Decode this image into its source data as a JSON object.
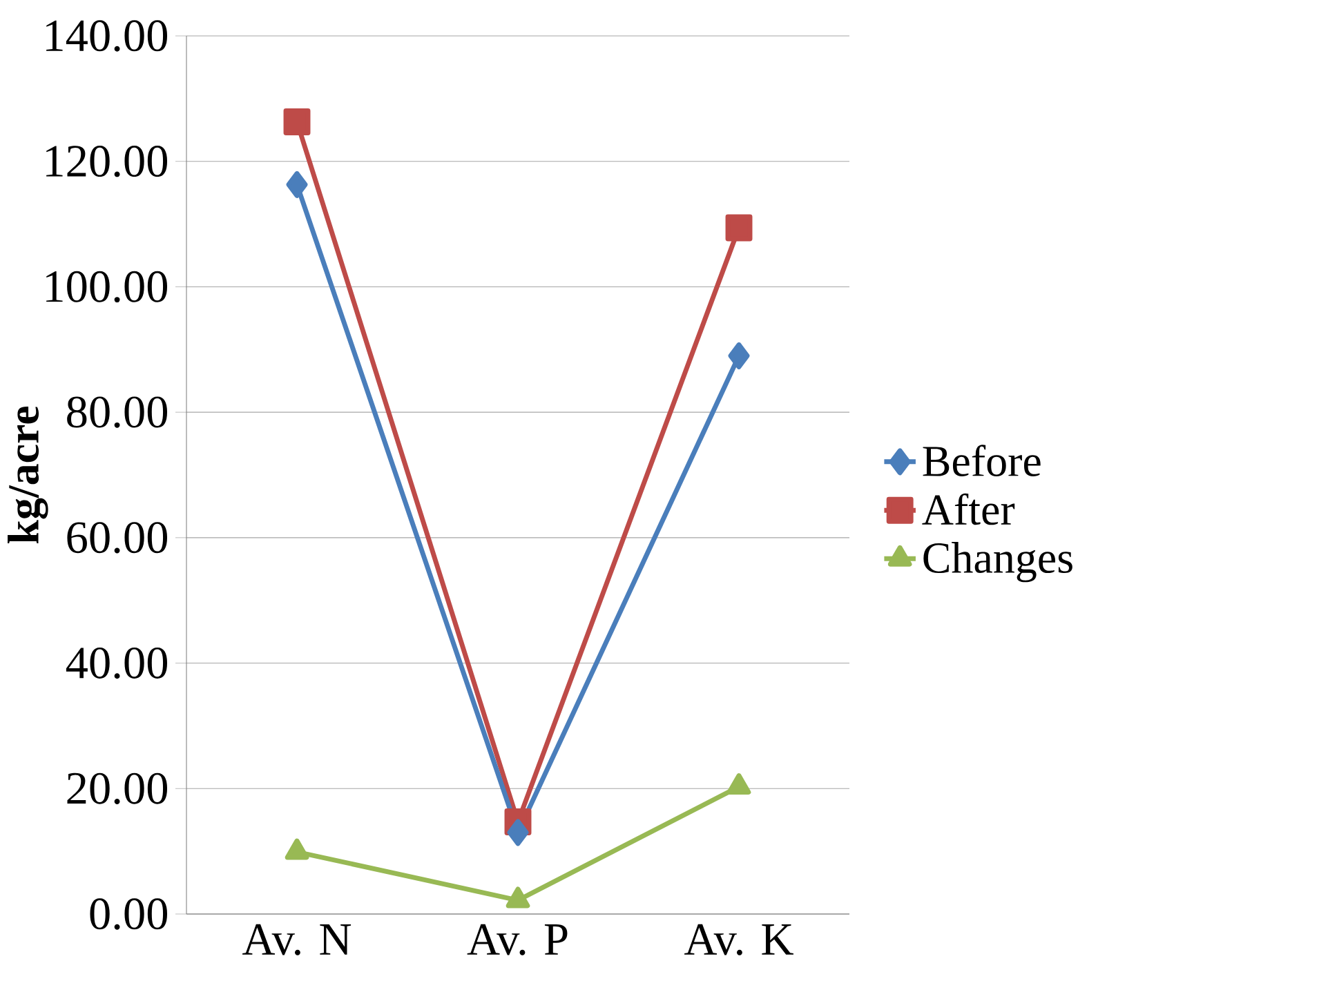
{
  "chart_data": {
    "type": "line",
    "ylabel": "kg/acre",
    "categories": [
      "Av. N",
      "Av. P",
      "Av. K"
    ],
    "series": [
      {
        "name": "Before",
        "color": "#4a7ebb",
        "marker": "diamond",
        "values": [
          116.3,
          13,
          89
        ]
      },
      {
        "name": "After",
        "color": "#be4b48",
        "marker": "square",
        "values": [
          126.3,
          14.7,
          109.4
        ]
      },
      {
        "name": "Changes",
        "color": "#98b954",
        "marker": "triangle",
        "values": [
          9.9,
          2.2,
          20.3
        ]
      }
    ],
    "ylim": [
      0,
      140
    ],
    "yticks": [
      {
        "value": 0,
        "label": "0.00"
      },
      {
        "value": 20,
        "label": "20.00"
      },
      {
        "value": 40,
        "label": "40.00"
      },
      {
        "value": 60,
        "label": "60.00"
      },
      {
        "value": 80,
        "label": "80.00"
      },
      {
        "value": 100,
        "label": "100.00"
      },
      {
        "value": 120,
        "label": "120.00"
      },
      {
        "value": 140,
        "label": "140.00"
      }
    ],
    "grid": "y",
    "legend": "right",
    "line_style": "solid"
  }
}
